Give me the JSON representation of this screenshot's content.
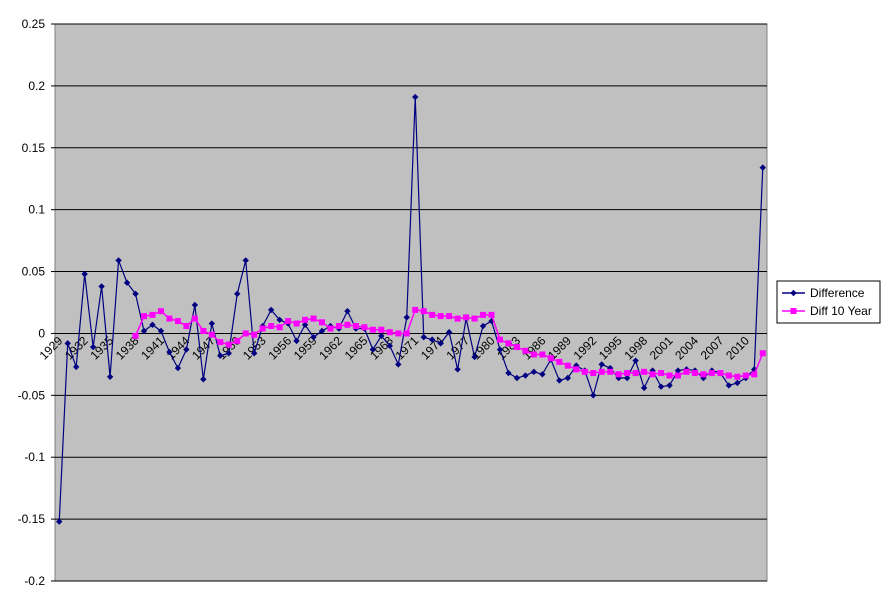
{
  "chart_data": {
    "type": "line",
    "title": "",
    "xlabel": "",
    "ylabel": "",
    "x_start": 1929,
    "x_end": 2012,
    "x_tick_labels": [
      "1929",
      "1932",
      "1935",
      "1938",
      "1941",
      "1944",
      "1947",
      "1950",
      "1953",
      "1956",
      "1959",
      "1962",
      "1965",
      "1968",
      "1971",
      "1974",
      "1977",
      "1980",
      "1983",
      "1986",
      "1989",
      "1992",
      "1995",
      "1998",
      "2001",
      "2004",
      "2007",
      "2010"
    ],
    "ylim": [
      -0.2,
      0.25
    ],
    "y_ticks": [
      -0.2,
      -0.15,
      -0.1,
      -0.05,
      0,
      0.05,
      0.1,
      0.15,
      0.2,
      0.25
    ],
    "y_tick_labels": [
      "-0.2",
      "-0.15",
      "-0.1",
      "-0.05",
      "0",
      "0.05",
      "0.1",
      "0.15",
      "0.2",
      "0.25"
    ],
    "grid": true,
    "plot_background": "#c0c0c0",
    "legend_position": "right",
    "series": [
      {
        "name": "Difference",
        "color": "#000080",
        "marker": "diamond",
        "x": [
          1929,
          1930,
          1931,
          1932,
          1933,
          1934,
          1935,
          1936,
          1937,
          1938,
          1939,
          1940,
          1941,
          1942,
          1943,
          1944,
          1945,
          1946,
          1947,
          1948,
          1949,
          1950,
          1951,
          1952,
          1953,
          1954,
          1955,
          1956,
          1957,
          1958,
          1959,
          1960,
          1961,
          1962,
          1963,
          1964,
          1965,
          1966,
          1967,
          1968,
          1969,
          1970,
          1971,
          1972,
          1973,
          1974,
          1975,
          1976,
          1977,
          1978,
          1979,
          1980,
          1981,
          1982,
          1983,
          1984,
          1985,
          1986,
          1987,
          1988,
          1989,
          1990,
          1991,
          1992,
          1993,
          1994,
          1995,
          1996,
          1997,
          1998,
          1999,
          2000,
          2001,
          2002,
          2003,
          2004,
          2005,
          2006,
          2007,
          2008,
          2009,
          2010,
          2011,
          2012
        ],
        "values": [
          -0.152,
          -0.008,
          -0.027,
          0.048,
          -0.011,
          0.038,
          -0.035,
          0.059,
          0.041,
          0.032,
          0.002,
          0.007,
          0.002,
          -0.015,
          -0.028,
          -0.013,
          0.023,
          -0.037,
          0.008,
          -0.018,
          -0.016,
          0.032,
          0.059,
          -0.016,
          0.006,
          0.019,
          0.011,
          0.008,
          -0.006,
          0.007,
          -0.003,
          0.002,
          0.006,
          0.004,
          0.018,
          0.004,
          0.004,
          -0.013,
          -0.002,
          -0.01,
          -0.025,
          0.013,
          0.191,
          -0.003,
          -0.005,
          -0.008,
          0.001,
          -0.029,
          0.012,
          -0.019,
          0.006,
          0.01,
          -0.013,
          -0.032,
          -0.036,
          -0.034,
          -0.031,
          -0.033,
          -0.021,
          -0.038,
          -0.036,
          -0.026,
          -0.03,
          -0.05,
          -0.025,
          -0.028,
          -0.036,
          -0.036,
          -0.022,
          -0.044,
          -0.03,
          -0.043,
          -0.042,
          -0.03,
          -0.029,
          -0.03,
          -0.036,
          -0.03,
          -0.032,
          -0.042,
          -0.04,
          -0.036,
          -0.029,
          0.134
        ]
      },
      {
        "name": "Diff 10 Year",
        "color": "#ff00ff",
        "marker": "square",
        "x": [
          1938,
          1939,
          1940,
          1941,
          1942,
          1943,
          1944,
          1945,
          1946,
          1947,
          1948,
          1949,
          1950,
          1951,
          1952,
          1953,
          1954,
          1955,
          1956,
          1957,
          1958,
          1959,
          1960,
          1961,
          1962,
          1963,
          1964,
          1965,
          1966,
          1967,
          1968,
          1969,
          1970,
          1971,
          1972,
          1973,
          1974,
          1975,
          1976,
          1977,
          1978,
          1979,
          1980,
          1981,
          1982,
          1983,
          1984,
          1985,
          1986,
          1987,
          1988,
          1989,
          1990,
          1991,
          1992,
          1993,
          1994,
          1995,
          1996,
          1997,
          1998,
          1999,
          2000,
          2001,
          2002,
          2003,
          2004,
          2005,
          2006,
          2007,
          2008,
          2009,
          2010,
          2011,
          2012
        ],
        "values": [
          -0.002,
          0.014,
          0.015,
          0.018,
          0.012,
          0.01,
          0.006,
          0.012,
          0.002,
          -0.001,
          -0.007,
          -0.009,
          -0.006,
          0.0,
          -0.001,
          0.004,
          0.006,
          0.005,
          0.01,
          0.008,
          0.011,
          0.012,
          0.009,
          0.004,
          0.006,
          0.007,
          0.006,
          0.005,
          0.003,
          0.003,
          0.001,
          0.0,
          0.0,
          0.019,
          0.018,
          0.015,
          0.014,
          0.014,
          0.012,
          0.013,
          0.012,
          0.015,
          0.015,
          -0.005,
          -0.008,
          -0.011,
          -0.014,
          -0.017,
          -0.017,
          -0.02,
          -0.023,
          -0.026,
          -0.029,
          -0.031,
          -0.032,
          -0.031,
          -0.031,
          -0.033,
          -0.032,
          -0.032,
          -0.031,
          -0.033,
          -0.032,
          -0.034,
          -0.034,
          -0.031,
          -0.032,
          -0.033,
          -0.032,
          -0.032,
          -0.034,
          -0.035,
          -0.034,
          -0.033,
          -0.016
        ]
      }
    ]
  }
}
